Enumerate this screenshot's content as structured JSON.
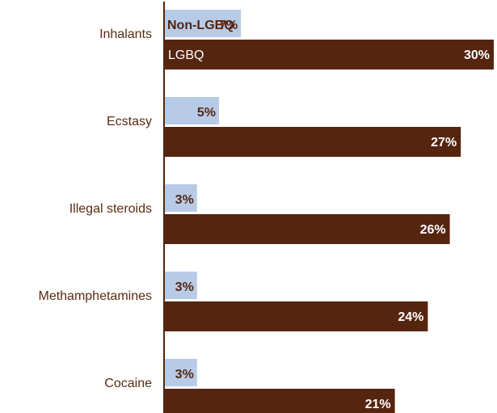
{
  "chart_data": {
    "type": "bar",
    "orientation": "horizontal",
    "categories": [
      "Inhalants",
      "Ecstasy",
      "Illegal steroids",
      "Methamphetamines",
      "Cocaine"
    ],
    "series": [
      {
        "name": "Non-LGBQ",
        "values": [
          7,
          5,
          3,
          3,
          3
        ],
        "labels": [
          "7%",
          "5%",
          "3%",
          "3%",
          "3%"
        ],
        "color": "#b8cbe6"
      },
      {
        "name": "LGBQ",
        "values": [
          30,
          27,
          26,
          24,
          21
        ],
        "labels": [
          "30%",
          "27%",
          "26%",
          "24%",
          "21%"
        ],
        "color": "#552510"
      }
    ],
    "xlim": [
      0,
      30
    ],
    "title": "",
    "xlabel": "",
    "ylabel": "",
    "legend": "inline on first bars",
    "grid": false
  },
  "colors": {
    "category_text": "#5a2b12",
    "axis": "#552510",
    "label_on_light": "#552510",
    "label_on_dark": "#ffffff"
  }
}
